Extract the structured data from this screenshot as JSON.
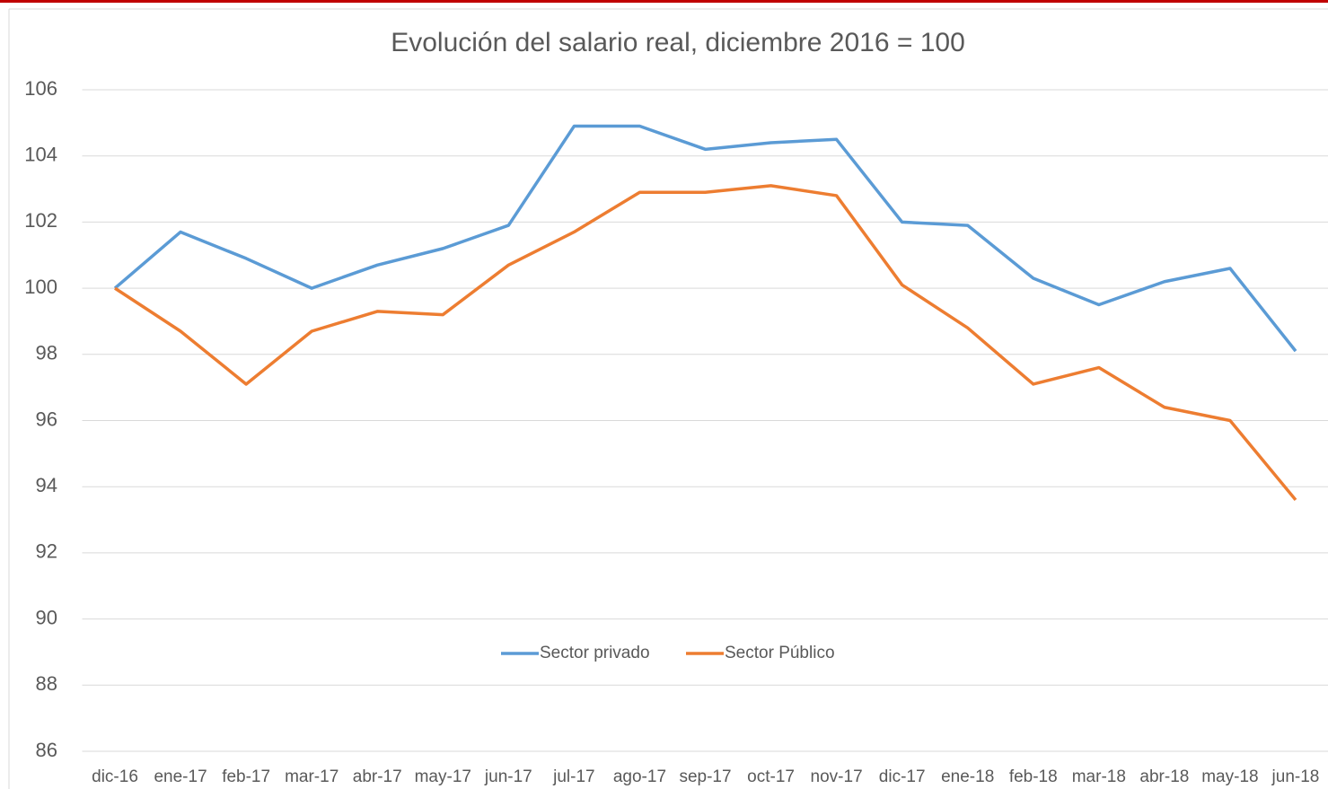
{
  "chart_data": {
    "type": "line",
    "title": "Evolución del salario real, diciembre 2016 = 100",
    "categories": [
      "dic-16",
      "ene-17",
      "feb-17",
      "mar-17",
      "abr-17",
      "may-17",
      "jun-17",
      "jul-17",
      "ago-17",
      "sep-17",
      "oct-17",
      "nov-17",
      "dic-17",
      "ene-18",
      "feb-18",
      "mar-18",
      "abr-18",
      "may-18",
      "jun-18"
    ],
    "series": [
      {
        "name": "Sector privado",
        "color": "#5b9bd5",
        "values": [
          100,
          101.7,
          100.9,
          100.0,
          100.7,
          101.2,
          101.9,
          104.9,
          104.9,
          104.2,
          104.4,
          104.5,
          102.0,
          101.9,
          100.3,
          99.5,
          100.2,
          100.6,
          98.1
        ]
      },
      {
        "name": "Sector Público",
        "color": "#ed7d31",
        "values": [
          100,
          98.7,
          97.1,
          98.7,
          99.3,
          99.2,
          100.7,
          101.7,
          102.9,
          102.9,
          103.1,
          102.8,
          100.1,
          98.8,
          97.1,
          97.6,
          96.4,
          96.0,
          93.6
        ]
      }
    ],
    "ylim": [
      86,
      106
    ],
    "yticks": [
      86,
      88,
      90,
      92,
      94,
      96,
      98,
      100,
      102,
      104,
      106
    ],
    "grid": true,
    "legend": "bottom"
  }
}
